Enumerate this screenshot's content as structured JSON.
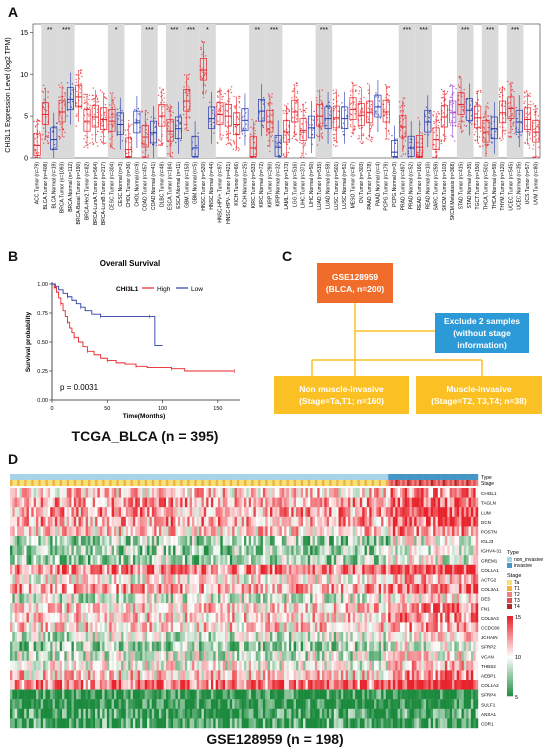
{
  "panels": {
    "a": "A",
    "b": "B",
    "c": "C",
    "d": "D"
  },
  "panelA": {
    "y_label": "CHI3L1 Expression Level (log2 TPM)",
    "y_ticks": [
      "0",
      "5",
      "10",
      "15"
    ],
    "categories": [
      "ACC.Tumor (n=79)",
      "BLCA.Tumor (n=408)",
      "BLCA.Normal (n=19)",
      "BRCA.Tumor (n=1093)",
      "BRCA.Normal (n=112)",
      "BRCA-Basal.Tumor (n=190)",
      "BRCA-Her2.Tumor (n=82)",
      "BRCA-LumA.Tumor (n=564)",
      "BRCA-LumB.Tumor (n=217)",
      "CESC.Tumor (n=304)",
      "CESC.Normal (n=3)",
      "CHOL.Tumor (n=36)",
      "CHOL.Normal (n=9)",
      "COAD.Tumor (n=457)",
      "COAD.Normal (n=41)",
      "DLBC.Tumor (n=48)",
      "ESCA.Tumor (n=184)",
      "ESCA.Normal (n=11)",
      "GBM.Tumor (n=153)",
      "GBM.Normal (n=5)",
      "HNSC.Tumor (n=520)",
      "HNSC.Normal (n=44)",
      "HNSC-HPV+.Tumor (n=97)",
      "HNSC-HPV-.Tumor (n=421)",
      "KICH.Tumor (n=66)",
      "KICH.Normal (n=25)",
      "KIRC.Tumor (n=533)",
      "KIRC.Normal (n=72)",
      "KIRP.Tumor (n=290)",
      "KIRP.Normal (n=32)",
      "LAML.Tumor (n=173)",
      "LGG.Tumor (n=516)",
      "LIHC.Tumor (n=371)",
      "LIHC.Normal (n=50)",
      "LUAD.Tumor (n=515)",
      "LUAD.Normal (n=59)",
      "LUSC.Tumor (n=501)",
      "LUSC.Normal (n=51)",
      "MESO.Tumor (n=87)",
      "OV.Tumor (n=303)",
      "PAAD.Tumor (n=178)",
      "PAAD.Normal (n=4)",
      "PCPG.Tumor (n=179)",
      "PCPG.Normal (n=3)",
      "PRAD.Tumor (n=497)",
      "PRAD.Normal (n=52)",
      "READ.Tumor (n=166)",
      "READ.Normal (n=10)",
      "SARC.Tumor (n=259)",
      "SKCM.Tumor (n=103)",
      "SKCM.Metastasis (n=368)",
      "STAD.Tumor (n=415)",
      "STAD.Normal (n=35)",
      "TGCT.Tumor (n=150)",
      "THCA.Tumor (n=501)",
      "THCA.Normal (n=59)",
      "THYM.Tumor (n=120)",
      "UCEC.Tumor (n=545)",
      "UCEC.Normal (n=35)",
      "UCS.Tumor (n=57)",
      "UVM.Tumor (n=80)"
    ],
    "significance": [
      {
        "index": 1,
        "label": "**"
      },
      {
        "index": 3,
        "label": "***"
      },
      {
        "index": 9,
        "label": "*"
      },
      {
        "index": 13,
        "label": "***"
      },
      {
        "index": 16,
        "label": "***"
      },
      {
        "index": 18,
        "label": "***"
      },
      {
        "index": 20,
        "label": "*"
      },
      {
        "index": 26,
        "label": "**"
      },
      {
        "index": 28,
        "label": "***"
      },
      {
        "index": 34,
        "label": "***"
      },
      {
        "index": 44,
        "label": "***"
      },
      {
        "index": 46,
        "label": "***"
      },
      {
        "index": 51,
        "label": "***"
      },
      {
        "index": 54,
        "label": "***"
      },
      {
        "index": 57,
        "label": "***"
      }
    ],
    "medians": [
      1.5,
      5.2,
      2.2,
      5.5,
      7.0,
      7.3,
      4.4,
      4.9,
      4.6,
      4.4,
      4.0,
      1.0,
      4.2,
      2.5,
      3.0,
      5.0,
      3.2,
      3.5,
      6.8,
      1.2,
      10.5,
      4.7,
      5.2,
      5.0,
      4.0,
      4.5,
      1.2,
      5.6,
      4.3,
      1.3,
      3.1,
      5.5,
      3.3,
      3.6,
      5.0,
      4.7,
      4.8,
      4.7,
      5.8,
      5.1,
      5.4,
      6.1,
      5.5,
      0.7,
      3.7,
      1.2,
      1.3,
      4.3,
      2.2,
      4.9,
      5.4,
      6.4,
      5.7,
      4.8,
      3.1,
      3.5,
      5.4,
      5.9,
      4.3,
      4.6,
      3.1
    ]
  },
  "panelB": {
    "title": "Overall Survival",
    "legend_title": "CHI3L1",
    "legend_high": "High",
    "legend_low": "Low",
    "y_label": "Survival probability",
    "x_label": "Time(Months)",
    "y_ticks": [
      "0.00",
      "0.25",
      "0.50",
      "0.75",
      "1.00"
    ],
    "x_ticks": [
      "0",
      "50",
      "100",
      "150"
    ],
    "pvalue": "p = 0.0031",
    "caption": "TCGA_BLCA (n = 395)",
    "colors": {
      "high": "#e8232b",
      "low": "#2b3fa6"
    }
  },
  "panelC": {
    "dataset": "GSE128959",
    "dataset_sub": "(BLCA, n=200)",
    "exclude_line1": "Exclude 2 samples",
    "exclude_line2": "(without stage",
    "exclude_line3": "information)",
    "nmi_line1": "Non muscle-invasive",
    "nmi_line2": "(Stage=Ta,T1; n=160)",
    "mi_line1": "Muscle-invasive",
    "mi_line2": "(Stage=T2, T3,T4; n=38)",
    "colors": {
      "dataset": "#ef6c2a",
      "exclude": "#2d9ad8",
      "groups": "#fbc124"
    }
  },
  "panelD": {
    "caption": "GSE128959 (n = 198)",
    "track_labels": [
      "Type",
      "Stage"
    ],
    "genes": [
      "CHI3L1",
      "TAGLN",
      "LUM",
      "DCN",
      "POSTN",
      "IGLJ3",
      "IGHV4-31",
      "GREM1",
      "COL1A1",
      "ACTG2",
      "COL3A1",
      "DES",
      "FN1",
      "COL6A3",
      "CCDC80",
      "JCHAIN",
      "SFRP2",
      "VCAN",
      "THBS2",
      "AEBP1",
      "COL1A2",
      "SFRP4",
      "SULF1",
      "ANXA1",
      "CDR1"
    ],
    "legend_type_title": "Type",
    "legend_type": [
      "non_invasive",
      "invasive"
    ],
    "legend_stage_title": "Stage",
    "legend_stage": [
      "Ta",
      "T1",
      "T2",
      "T3",
      "T4"
    ],
    "colorbar_ticks": [
      "15",
      "10",
      "5"
    ],
    "colors": {
      "non_invasive": "#a7d3e8",
      "invasive": "#4496c6",
      "Ta": "#f6e07a",
      "T1": "#f0b43d",
      "T2": "#f08080",
      "T3": "#e05050",
      "T4": "#b52828",
      "high": "#e8232b",
      "mid": "#ffffff",
      "low": "#1b8a3c"
    }
  }
}
